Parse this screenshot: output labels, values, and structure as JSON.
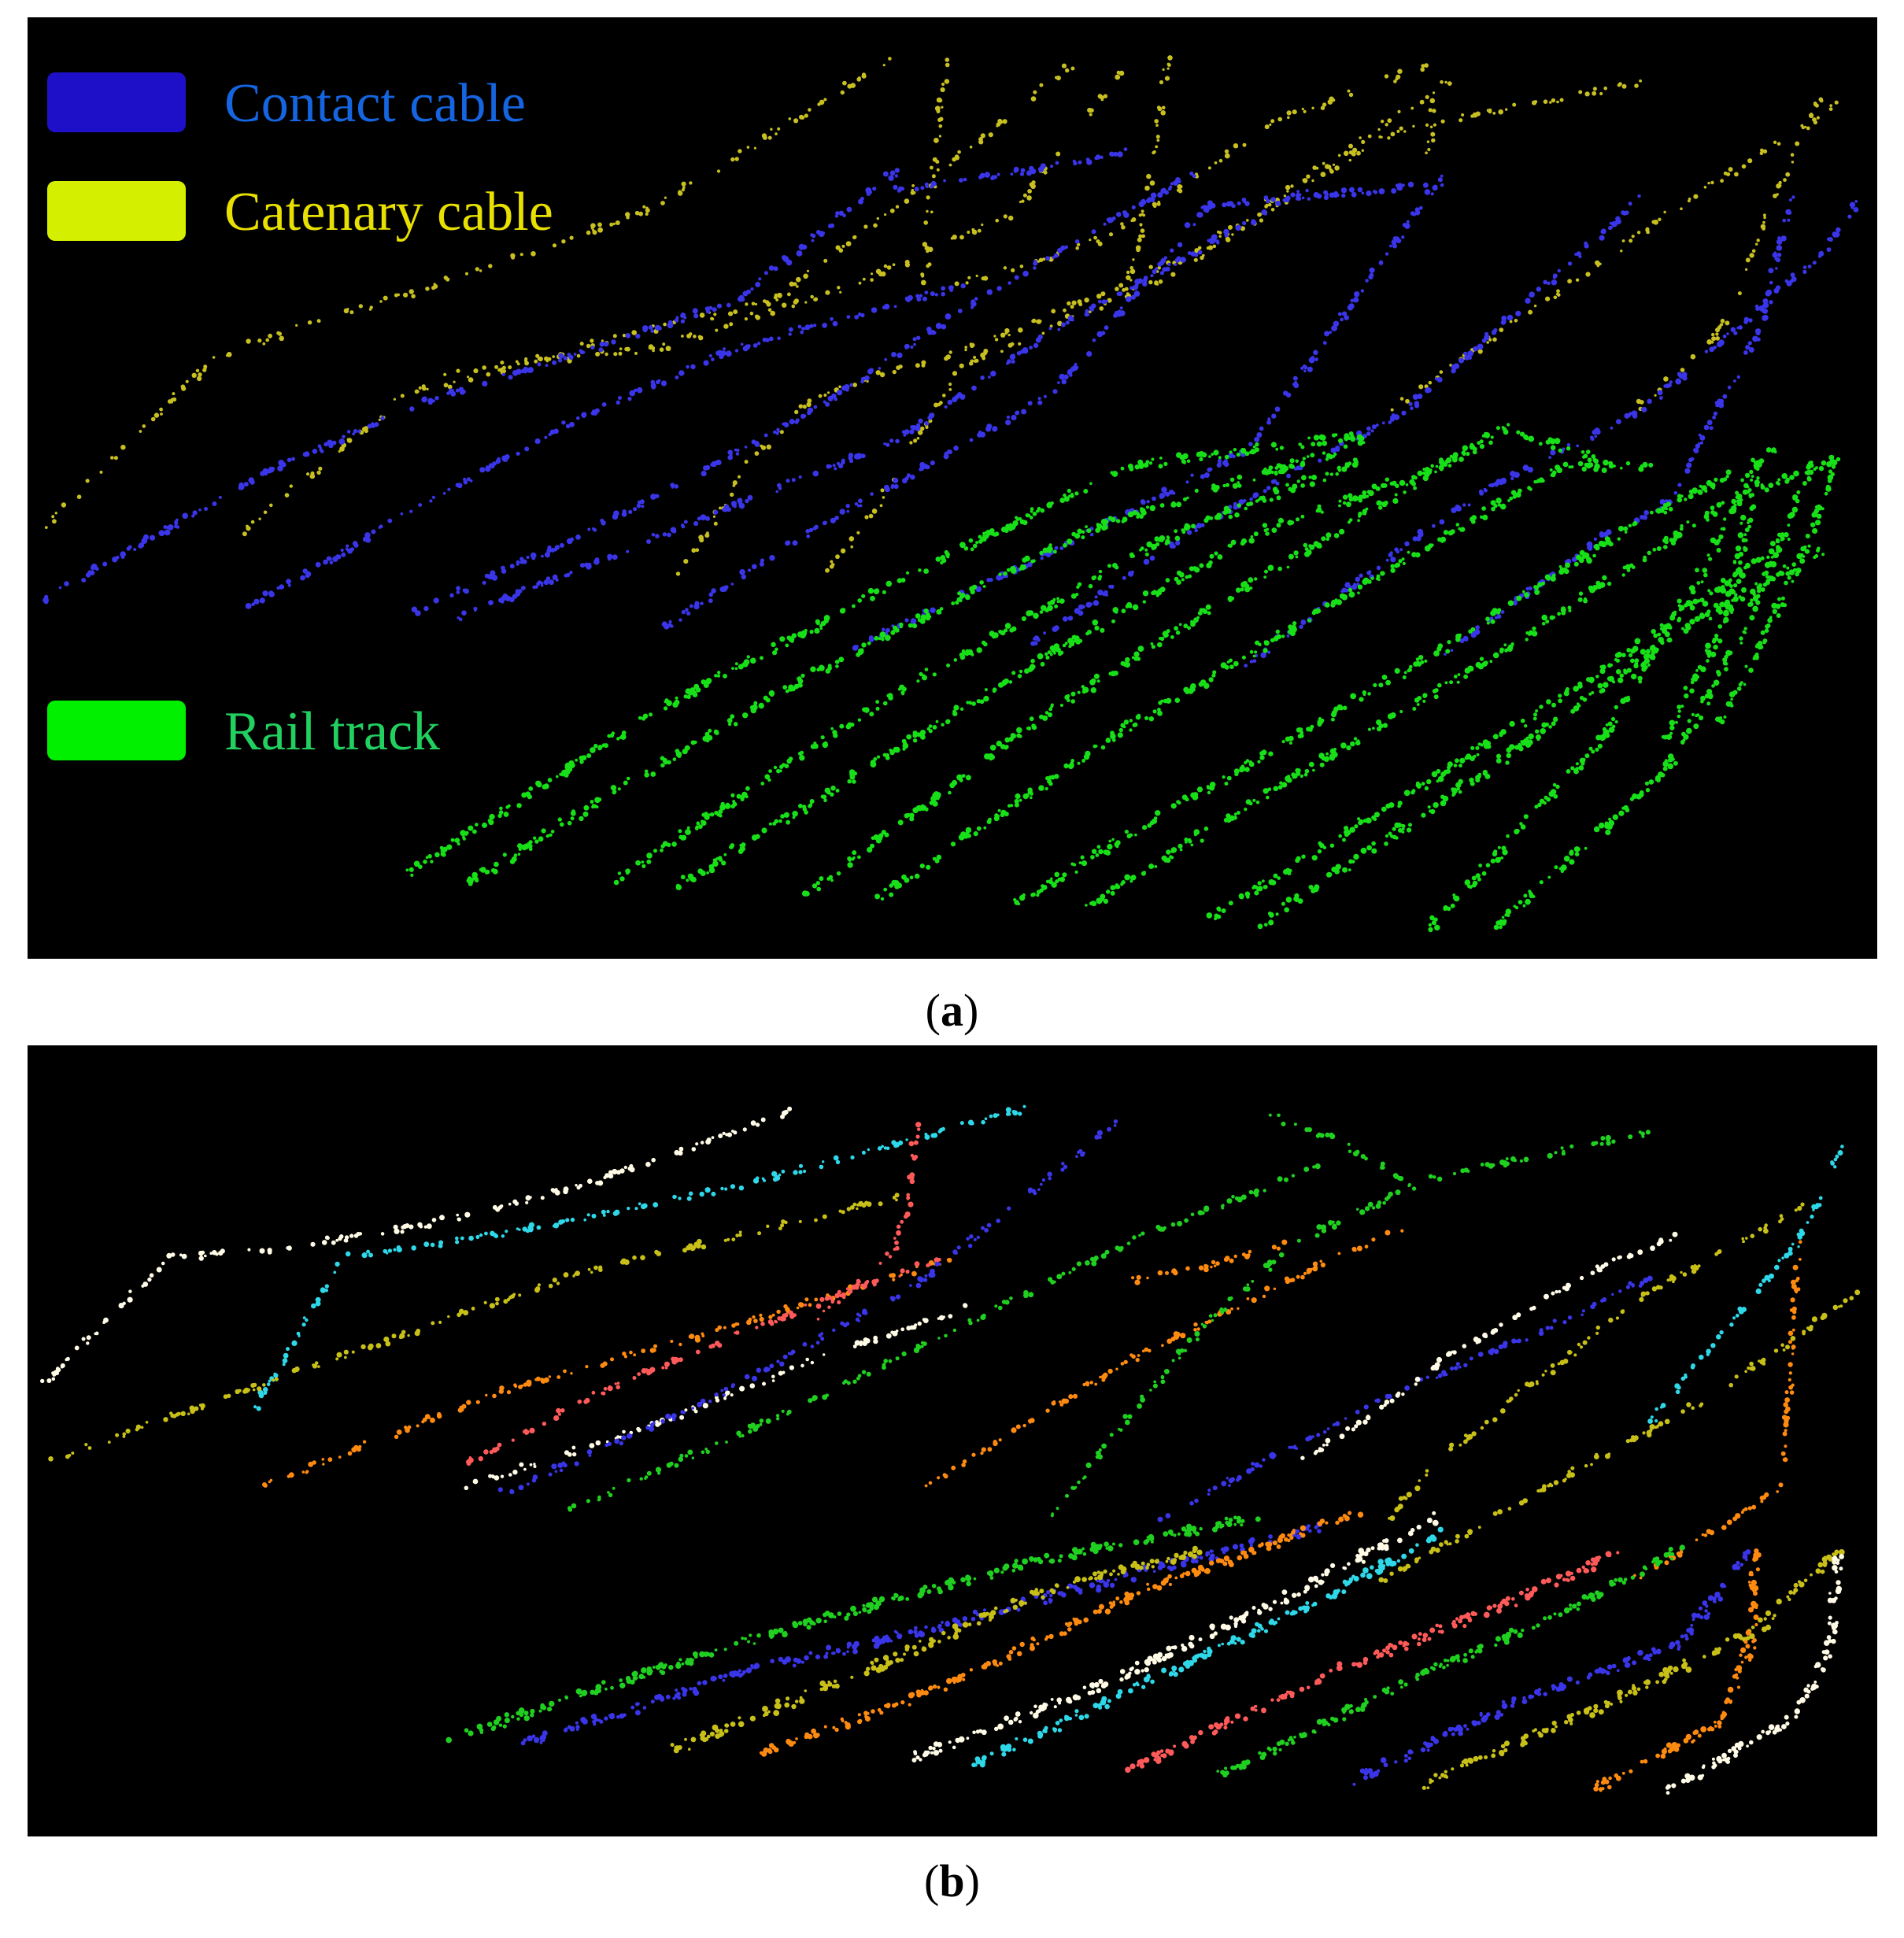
{
  "panel_a": {
    "caption_letter": "a",
    "legend": [
      {
        "label": "Contact cable",
        "swatch_color": "#1e10c8",
        "text_color": "#1565e0"
      },
      {
        "label": "Catenary cable",
        "swatch_color": "#d4f000",
        "text_color": "#e8e000"
      },
      {
        "label": "Rail track",
        "swatch_color": "#00f000",
        "text_color": "#22d060"
      }
    ],
    "class_colors": {
      "contact": "#3a35e8",
      "catenary": "#c8c020",
      "rail": "#18e018"
    }
  },
  "panel_b": {
    "caption_letter": "b",
    "instance_colors": [
      "#fffbe6",
      "#2ed8e8",
      "#c8c018",
      "#ff8a10",
      "#ff5a5a",
      "#20d020",
      "#3a35e8"
    ]
  },
  "caption_open": "(",
  "caption_close": ")"
}
